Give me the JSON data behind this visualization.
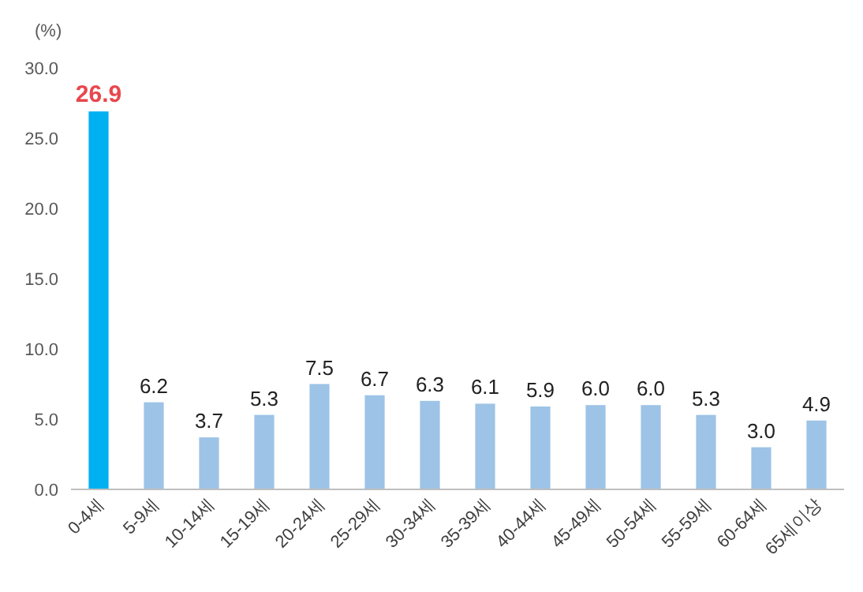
{
  "chart_data": {
    "type": "bar",
    "ylabel": "(%)",
    "categories": [
      "0-4세",
      "5-9세",
      "10-14세",
      "15-19세",
      "20-24세",
      "25-29세",
      "30-34세",
      "35-39세",
      "40-44세",
      "45-49세",
      "50-54세",
      "55-59세",
      "60-64세",
      "65세이상"
    ],
    "values": [
      26.9,
      6.2,
      3.7,
      5.3,
      7.5,
      6.7,
      6.3,
      6.1,
      5.9,
      6.0,
      6.0,
      5.3,
      3.0,
      4.9
    ],
    "value_labels": [
      "26.9",
      "6.2",
      "3.7",
      "5.3",
      "7.5",
      "6.7",
      "6.3",
      "6.1",
      "5.9",
      "6.0",
      "6.0",
      "5.3",
      "3.0",
      "4.9"
    ],
    "colors": [
      "#00b0f0",
      "#9dc3e6",
      "#9dc3e6",
      "#9dc3e6",
      "#9dc3e6",
      "#9dc3e6",
      "#9dc3e6",
      "#9dc3e6",
      "#9dc3e6",
      "#9dc3e6",
      "#9dc3e6",
      "#9dc3e6",
      "#9dc3e6",
      "#9dc3e6"
    ],
    "ylim": [
      0,
      30
    ],
    "yticks": [
      {
        "value": 0,
        "label": "0.0"
      },
      {
        "value": 5,
        "label": "5.0"
      },
      {
        "value": 10,
        "label": "10.0"
      },
      {
        "value": 15,
        "label": "15.0"
      },
      {
        "value": 20,
        "label": "20.0"
      },
      {
        "value": 25,
        "label": "25.0"
      },
      {
        "value": 30,
        "label": "30.0"
      }
    ],
    "grid": false
  }
}
